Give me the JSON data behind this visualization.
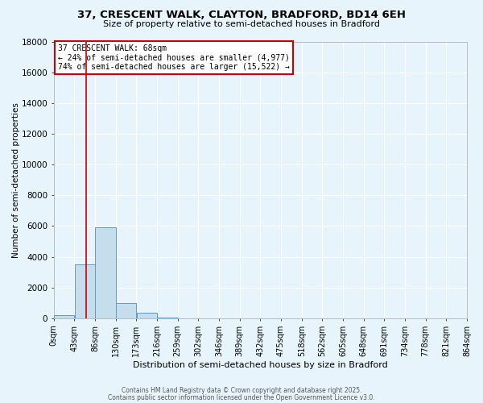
{
  "title": "37, CRESCENT WALK, CLAYTON, BRADFORD, BD14 6EH",
  "subtitle": "Size of property relative to semi-detached houses in Bradford",
  "xlabel": "Distribution of semi-detached houses by size in Bradford",
  "ylabel": "Number of semi-detached properties",
  "bin_edges": [
    0,
    43,
    86,
    129,
    172,
    215,
    258,
    301,
    344,
    387,
    430,
    473,
    516,
    559,
    602,
    645,
    688,
    731,
    774,
    817,
    860
  ],
  "bin_labels": [
    "0sqm",
    "43sqm",
    "86sqm",
    "130sqm",
    "173sqm",
    "216sqm",
    "259sqm",
    "302sqm",
    "346sqm",
    "389sqm",
    "432sqm",
    "475sqm",
    "518sqm",
    "562sqm",
    "605sqm",
    "648sqm",
    "691sqm",
    "734sqm",
    "778sqm",
    "821sqm",
    "864sqm"
  ],
  "bar_heights": [
    200,
    3500,
    5900,
    1000,
    350,
    50,
    0,
    0,
    0,
    0,
    0,
    0,
    0,
    0,
    0,
    0,
    0,
    0,
    0,
    0
  ],
  "bar_color": "#C5DDED",
  "bar_edge_color": "#6699BB",
  "ylim": [
    0,
    18000
  ],
  "yticks": [
    0,
    2000,
    4000,
    6000,
    8000,
    10000,
    12000,
    14000,
    16000,
    18000
  ],
  "property_size": 68,
  "property_line_color": "#CC0000",
  "annotation_title": "37 CRESCENT WALK: 68sqm",
  "annotation_line1": "← 24% of semi-detached houses are smaller (4,977)",
  "annotation_line2": "74% of semi-detached houses are larger (15,522) →",
  "annotation_box_color": "#CC0000",
  "bg_color": "#E8F4FC",
  "grid_color": "#FFFFFF",
  "footer1": "Contains HM Land Registry data © Crown copyright and database right 2025.",
  "footer2": "Contains public sector information licensed under the Open Government Licence v3.0."
}
